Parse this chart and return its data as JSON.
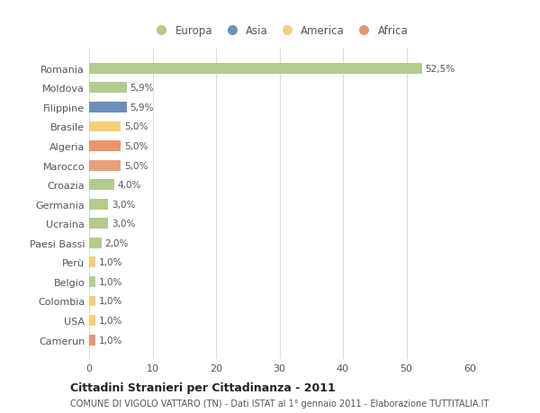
{
  "categories": [
    "Romania",
    "Moldova",
    "Filippine",
    "Brasile",
    "Algeria",
    "Marocco",
    "Croazia",
    "Germania",
    "Ucraina",
    "Paesi Bassi",
    "Perù",
    "Belgio",
    "Colombia",
    "USA",
    "Camerun"
  ],
  "values": [
    52.5,
    5.9,
    5.9,
    5.0,
    5.0,
    5.0,
    4.0,
    3.0,
    3.0,
    2.0,
    1.0,
    1.0,
    1.0,
    1.0,
    1.0
  ],
  "labels": [
    "52,5%",
    "5,9%",
    "5,9%",
    "5,0%",
    "5,0%",
    "5,0%",
    "4,0%",
    "3,0%",
    "3,0%",
    "2,0%",
    "1,0%",
    "1,0%",
    "1,0%",
    "1,0%",
    "1,0%"
  ],
  "colors": [
    "#b5ca8d",
    "#b5ca8d",
    "#6b8fba",
    "#f5cf78",
    "#e8956b",
    "#e8a07a",
    "#b5ca8d",
    "#b5ca8d",
    "#b5ca8d",
    "#b5ca8d",
    "#f5cf78",
    "#b5ca8d",
    "#f5cf78",
    "#f5cf78",
    "#e8956b"
  ],
  "legend_labels": [
    "Europa",
    "Asia",
    "America",
    "Africa"
  ],
  "legend_colors": [
    "#b5ca8d",
    "#6b8fba",
    "#f5cf78",
    "#e8956b"
  ],
  "xlim": [
    0,
    60
  ],
  "xticks": [
    0,
    10,
    20,
    30,
    40,
    50,
    60
  ],
  "title": "Cittadini Stranieri per Cittadinanza - 2011",
  "subtitle": "COMUNE DI VIGOLO VATTARO (TN) - Dati ISTAT al 1° gennaio 2011 - Elaborazione TUTTITALIA.IT",
  "background_color": "#ffffff",
  "plot_bg_color": "#ffffff",
  "grid_color": "#dddddd",
  "bar_height": 0.55,
  "text_color": "#555555",
  "title_color": "#222222",
  "subtitle_color": "#555555"
}
